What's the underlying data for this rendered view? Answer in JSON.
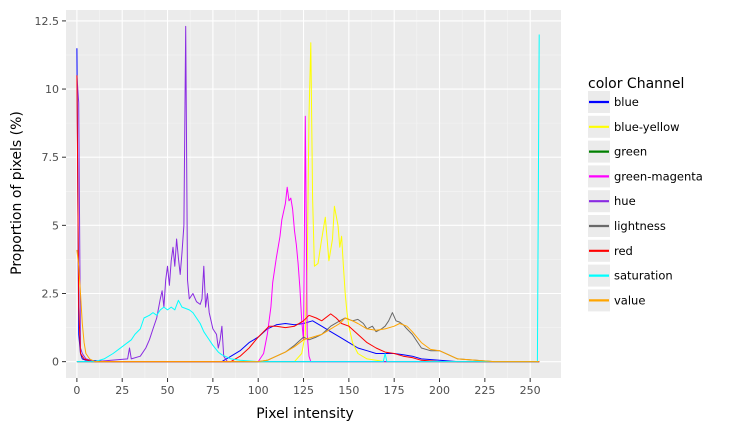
{
  "chart_data": {
    "type": "line",
    "xlabel": "Pixel intensity",
    "ylabel": "Proportion of pixels (%)",
    "xlim": [
      -6,
      267
    ],
    "ylim": [
      -0.6,
      12.9
    ],
    "x_ticks": [
      0,
      25,
      50,
      75,
      100,
      125,
      150,
      175,
      200,
      225,
      250
    ],
    "x_tick_labels": [
      "0",
      "25",
      "50",
      "75",
      "100",
      "125",
      "150",
      "175",
      "200",
      "225",
      "250"
    ],
    "y_ticks": [
      0,
      2.5,
      5,
      7.5,
      10,
      12.5
    ],
    "y_tick_labels": [
      "0",
      "2.5",
      "5",
      "7.5",
      "10",
      "12.5"
    ],
    "grid": true,
    "legend": {
      "title": "color Channel",
      "position": "right"
    },
    "series": [
      {
        "name": "blue",
        "color": "#0000ff",
        "points": [
          [
            0,
            11.5
          ],
          [
            1,
            1.0
          ],
          [
            2,
            0.3
          ],
          [
            3,
            0.1
          ],
          [
            5,
            0.05
          ],
          [
            20,
            0
          ],
          [
            80,
            0
          ],
          [
            85,
            0.2
          ],
          [
            90,
            0.4
          ],
          [
            95,
            0.7
          ],
          [
            100,
            0.9
          ],
          [
            105,
            1.2
          ],
          [
            110,
            1.35
          ],
          [
            115,
            1.4
          ],
          [
            120,
            1.35
          ],
          [
            125,
            1.4
          ],
          [
            130,
            1.5
          ],
          [
            135,
            1.3
          ],
          [
            140,
            1.1
          ],
          [
            145,
            0.9
          ],
          [
            150,
            0.7
          ],
          [
            155,
            0.5
          ],
          [
            160,
            0.4
          ],
          [
            165,
            0.3
          ],
          [
            170,
            0.3
          ],
          [
            175,
            0.3
          ],
          [
            180,
            0.25
          ],
          [
            185,
            0.2
          ],
          [
            190,
            0.1
          ],
          [
            200,
            0.05
          ],
          [
            210,
            0
          ],
          [
            255,
            0
          ]
        ]
      },
      {
        "name": "blue-yellow",
        "color": "#ffff00",
        "points": [
          [
            0,
            0
          ],
          [
            120,
            0
          ],
          [
            124,
            0.3
          ],
          [
            126,
            1.0
          ],
          [
            127,
            3.5
          ],
          [
            128,
            9.0
          ],
          [
            129,
            11.7
          ],
          [
            130,
            6.0
          ],
          [
            131,
            3.5
          ],
          [
            133,
            3.6
          ],
          [
            135,
            4.5
          ],
          [
            137,
            5.3
          ],
          [
            139,
            3.7
          ],
          [
            141,
            4.5
          ],
          [
            142,
            5.7
          ],
          [
            144,
            5.0
          ],
          [
            145,
            4.2
          ],
          [
            146,
            4.6
          ],
          [
            147,
            3.5
          ],
          [
            148,
            2.5
          ],
          [
            149,
            1.8
          ],
          [
            150,
            1.3
          ],
          [
            152,
            0.7
          ],
          [
            155,
            0.3
          ],
          [
            160,
            0.1
          ],
          [
            170,
            0
          ],
          [
            255,
            0
          ]
        ]
      },
      {
        "name": "green",
        "color": "#008000",
        "points": [
          [
            0,
            0
          ],
          [
            255,
            0
          ]
        ]
      },
      {
        "name": "green-magenta",
        "color": "#ff00ff",
        "points": [
          [
            0,
            0
          ],
          [
            100,
            0
          ],
          [
            103,
            0.3
          ],
          [
            105,
            1.0
          ],
          [
            107,
            2.0
          ],
          [
            108,
            2.9
          ],
          [
            110,
            3.8
          ],
          [
            112,
            4.6
          ],
          [
            113,
            5.2
          ],
          [
            115,
            5.8
          ],
          [
            116,
            6.4
          ],
          [
            117,
            5.9
          ],
          [
            118,
            6.0
          ],
          [
            119,
            5.6
          ],
          [
            120,
            4.8
          ],
          [
            121,
            4.3
          ],
          [
            122,
            3.6
          ],
          [
            123,
            2.7
          ],
          [
            124,
            1.5
          ],
          [
            125,
            0.8
          ],
          [
            126,
            9.0
          ],
          [
            127,
            1.0
          ],
          [
            128,
            0.2
          ],
          [
            129,
            0
          ],
          [
            255,
            0
          ]
        ]
      },
      {
        "name": "hue",
        "color": "#8a2be2",
        "points": [
          [
            0,
            10.5
          ],
          [
            1,
            9.5
          ],
          [
            2,
            0.5
          ],
          [
            3,
            0.3
          ],
          [
            5,
            0.1
          ],
          [
            10,
            0
          ],
          [
            28,
            0.1
          ],
          [
            29,
            0.5
          ],
          [
            30,
            0.1
          ],
          [
            35,
            0.2
          ],
          [
            38,
            0.5
          ],
          [
            40,
            0.8
          ],
          [
            42,
            1.2
          ],
          [
            44,
            1.6
          ],
          [
            46,
            2.3
          ],
          [
            47,
            2.6
          ],
          [
            48,
            2.0
          ],
          [
            49,
            3.0
          ],
          [
            50,
            3.5
          ],
          [
            51,
            2.8
          ],
          [
            52,
            3.7
          ],
          [
            53,
            4.2
          ],
          [
            54,
            3.5
          ],
          [
            55,
            4.5
          ],
          [
            56,
            3.8
          ],
          [
            57,
            3.2
          ],
          [
            58,
            4.0
          ],
          [
            59,
            5.0
          ],
          [
            60,
            12.3
          ],
          [
            61,
            3.0
          ],
          [
            62,
            2.3
          ],
          [
            64,
            2.5
          ],
          [
            66,
            2.2
          ],
          [
            68,
            2.1
          ],
          [
            69,
            2.3
          ],
          [
            70,
            3.5
          ],
          [
            71,
            2.0
          ],
          [
            72,
            2.5
          ],
          [
            73,
            1.8
          ],
          [
            75,
            1.2
          ],
          [
            77,
            1.0
          ],
          [
            78,
            0.5
          ],
          [
            79,
            0.8
          ],
          [
            80,
            1.3
          ],
          [
            81,
            0.2
          ],
          [
            83,
            0
          ],
          [
            255,
            0
          ]
        ]
      },
      {
        "name": "lightness",
        "color": "#696969",
        "points": [
          [
            0,
            0
          ],
          [
            100,
            0
          ],
          [
            105,
            0.05
          ],
          [
            110,
            0.2
          ],
          [
            115,
            0.35
          ],
          [
            120,
            0.6
          ],
          [
            125,
            0.9
          ],
          [
            128,
            0.8
          ],
          [
            132,
            0.9
          ],
          [
            135,
            1.0
          ],
          [
            140,
            1.3
          ],
          [
            145,
            1.5
          ],
          [
            148,
            1.6
          ],
          [
            152,
            1.5
          ],
          [
            155,
            1.55
          ],
          [
            158,
            1.4
          ],
          [
            160,
            1.2
          ],
          [
            163,
            1.3
          ],
          [
            165,
            1.1
          ],
          [
            168,
            1.2
          ],
          [
            170,
            1.3
          ],
          [
            172,
            1.5
          ],
          [
            174,
            1.8
          ],
          [
            176,
            1.5
          ],
          [
            178,
            1.45
          ],
          [
            180,
            1.35
          ],
          [
            182,
            1.2
          ],
          [
            185,
            1.0
          ],
          [
            188,
            0.7
          ],
          [
            190,
            0.5
          ],
          [
            195,
            0.4
          ],
          [
            200,
            0.4
          ],
          [
            205,
            0.25
          ],
          [
            210,
            0.1
          ],
          [
            220,
            0.05
          ],
          [
            230,
            0
          ],
          [
            255,
            0
          ]
        ]
      },
      {
        "name": "red",
        "color": "#ff0000",
        "points": [
          [
            0,
            10.5
          ],
          [
            1,
            2.0
          ],
          [
            2,
            0.3
          ],
          [
            4,
            0.1
          ],
          [
            8,
            0
          ],
          [
            85,
            0
          ],
          [
            90,
            0.2
          ],
          [
            95,
            0.5
          ],
          [
            100,
            0.9
          ],
          [
            103,
            1.1
          ],
          [
            106,
            1.3
          ],
          [
            110,
            1.3
          ],
          [
            115,
            1.25
          ],
          [
            120,
            1.3
          ],
          [
            125,
            1.5
          ],
          [
            128,
            1.7
          ],
          [
            132,
            1.6
          ],
          [
            135,
            1.5
          ],
          [
            140,
            1.75
          ],
          [
            143,
            1.6
          ],
          [
            146,
            1.4
          ],
          [
            150,
            1.3
          ],
          [
            155,
            1.0
          ],
          [
            160,
            0.7
          ],
          [
            165,
            0.5
          ],
          [
            170,
            0.35
          ],
          [
            175,
            0.3
          ],
          [
            180,
            0.2
          ],
          [
            185,
            0.15
          ],
          [
            190,
            0.05
          ],
          [
            200,
            0
          ],
          [
            255,
            0
          ]
        ]
      },
      {
        "name": "saturation",
        "color": "#00ffff",
        "points": [
          [
            0,
            0
          ],
          [
            10,
            0
          ],
          [
            15,
            0.1
          ],
          [
            20,
            0.3
          ],
          [
            25,
            0.55
          ],
          [
            30,
            0.8
          ],
          [
            32,
            1.0
          ],
          [
            35,
            1.2
          ],
          [
            37,
            1.6
          ],
          [
            40,
            1.7
          ],
          [
            42,
            1.8
          ],
          [
            44,
            1.7
          ],
          [
            46,
            1.9
          ],
          [
            48,
            2.0
          ],
          [
            50,
            1.9
          ],
          [
            52,
            2.0
          ],
          [
            54,
            1.9
          ],
          [
            56,
            2.25
          ],
          [
            58,
            2.0
          ],
          [
            60,
            1.95
          ],
          [
            62,
            1.9
          ],
          [
            64,
            1.8
          ],
          [
            66,
            1.6
          ],
          [
            68,
            1.4
          ],
          [
            70,
            1.1
          ],
          [
            72,
            0.9
          ],
          [
            75,
            0.6
          ],
          [
            78,
            0.35
          ],
          [
            80,
            0.25
          ],
          [
            85,
            0.1
          ],
          [
            90,
            0.05
          ],
          [
            100,
            0
          ],
          [
            169,
            0
          ],
          [
            170,
            0.3
          ],
          [
            171,
            0
          ],
          [
            254,
            0
          ],
          [
            255,
            12.0
          ]
        ]
      },
      {
        "name": "value",
        "color": "#ffa500",
        "points": [
          [
            0,
            4.1
          ],
          [
            1,
            3.5
          ],
          [
            2,
            2.5
          ],
          [
            3,
            1.4
          ],
          [
            4,
            0.7
          ],
          [
            5,
            0.3
          ],
          [
            7,
            0.1
          ],
          [
            10,
            0
          ],
          [
            100,
            0
          ],
          [
            105,
            0.05
          ],
          [
            110,
            0.2
          ],
          [
            115,
            0.35
          ],
          [
            120,
            0.55
          ],
          [
            125,
            0.8
          ],
          [
            130,
            0.9
          ],
          [
            135,
            1.0
          ],
          [
            140,
            1.2
          ],
          [
            145,
            1.4
          ],
          [
            148,
            1.6
          ],
          [
            152,
            1.5
          ],
          [
            155,
            1.4
          ],
          [
            160,
            1.2
          ],
          [
            165,
            1.15
          ],
          [
            170,
            1.2
          ],
          [
            175,
            1.3
          ],
          [
            178,
            1.4
          ],
          [
            182,
            1.3
          ],
          [
            185,
            1.1
          ],
          [
            190,
            0.7
          ],
          [
            195,
            0.45
          ],
          [
            200,
            0.4
          ],
          [
            205,
            0.25
          ],
          [
            210,
            0.1
          ],
          [
            220,
            0.05
          ],
          [
            230,
            0
          ],
          [
            255,
            0
          ]
        ]
      }
    ]
  }
}
